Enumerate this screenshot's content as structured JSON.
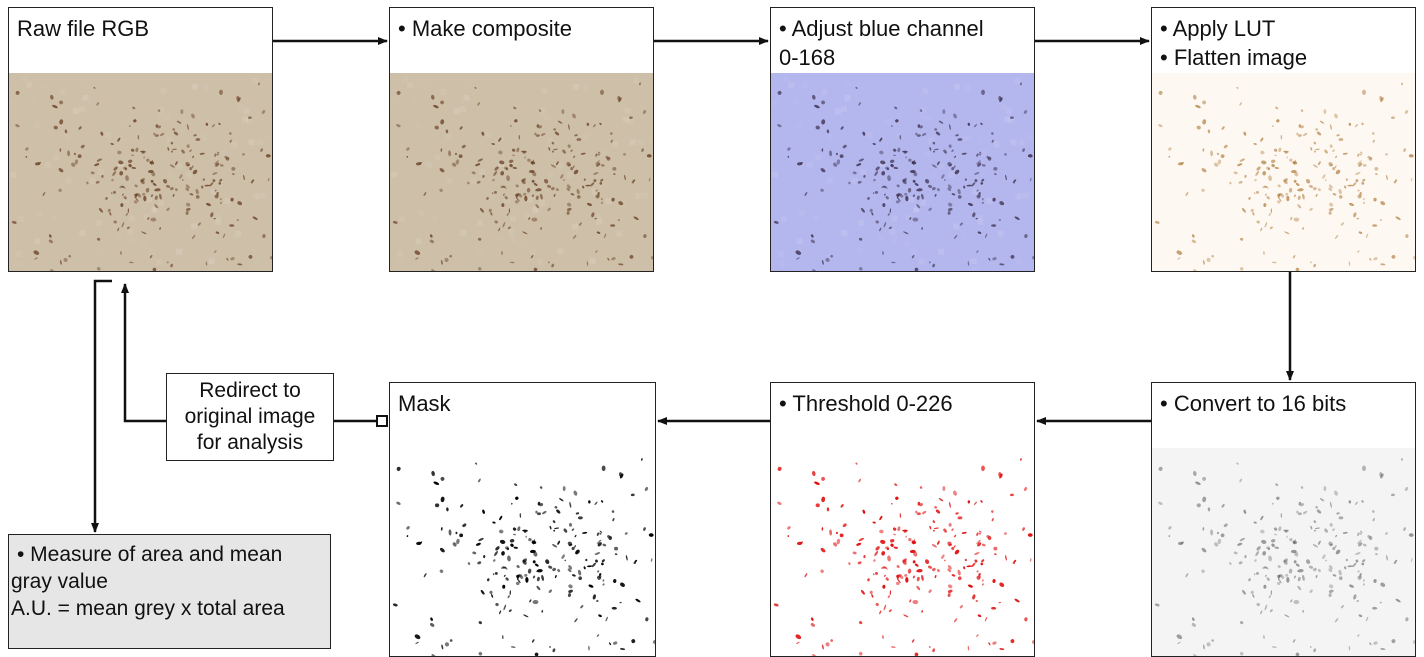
{
  "panels": {
    "raw": {
      "lines": [
        "Raw file RGB"
      ]
    },
    "composite": {
      "lines": [
        "• Make composite"
      ]
    },
    "blue": {
      "lines": [
        "• Adjust blue channel",
        "0-168"
      ]
    },
    "lut": {
      "lines": [
        "• Apply LUT",
        "• Flatten image"
      ]
    },
    "convert": {
      "lines": [
        "• Convert to 16 bits"
      ]
    },
    "threshold": {
      "lines": [
        "• Threshold 0-226"
      ]
    },
    "mask": {
      "lines": [
        "Mask"
      ]
    }
  },
  "redirect": {
    "lines": [
      "Redirect to",
      "original image",
      "for analysis"
    ]
  },
  "measure": {
    "lines": [
      "• Measure of area and mean",
      "gray value",
      "A.U. = mean grey x total area"
    ]
  },
  "colors": {
    "raw_bg": "#cdbfa8",
    "raw_cell": "#6b4226",
    "blue_bg": "#b4b6ee",
    "blue_cell": "#3a2e4a",
    "lut_bg": "#fdf9f2",
    "lut_cell": "#b07a3a",
    "gray_bg": "#f4f4f4",
    "gray_cell": "#555555",
    "threshold_bg": "#ffffff",
    "threshold_cell": "#e01010",
    "mask_bg": "#ffffff",
    "mask_cell": "#000000",
    "measure_bg": "#e6e6e6"
  }
}
